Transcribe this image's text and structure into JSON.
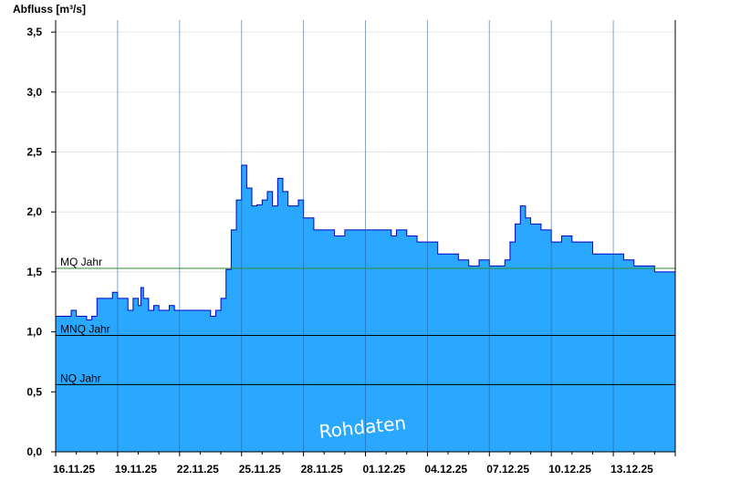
{
  "chart_data": {
    "type": "area",
    "title": "",
    "ylabel": "Abfluss [m³/s]",
    "xlabel": "",
    "ylim": [
      0,
      3.6
    ],
    "yticks": [
      0,
      0.5,
      1.0,
      1.5,
      2.0,
      2.5,
      3.0,
      3.5
    ],
    "ytick_labels": [
      "0,0",
      "0,5",
      "1,0",
      "1,5",
      "2,0",
      "2,5",
      "3,0",
      "3,5"
    ],
    "xlim": [
      "2025-11-16",
      "2025-12-16"
    ],
    "xtick_labels": [
      "16.11.25",
      "19.11.25",
      "22.11.25",
      "25.11.25",
      "28.11.25",
      "01.12.25",
      "04.12.25",
      "07.12.25",
      "10.12.25",
      "13.12.25"
    ],
    "grid": true,
    "fill_color": "#2aa8ff",
    "line_color": "#0000cc",
    "watermark": "Rohdaten",
    "reference_lines": [
      {
        "label": "MQ Jahr",
        "value": 1.53,
        "color": "#2e8b2e"
      },
      {
        "label": "MNQ Jahr",
        "value": 0.97,
        "color": "#000000"
      },
      {
        "label": "NQ Jahr",
        "value": 0.56,
        "color": "#000000"
      }
    ],
    "series": [
      {
        "x": [
          "2025-11-16",
          "2025-11-16T12:00",
          "2025-11-16T18:00",
          "2025-11-17T00:00",
          "2025-11-17T06:00",
          "2025-11-17T12:00",
          "2025-11-17T18:00",
          "2025-11-18T00:00",
          "2025-11-18T06:00",
          "2025-11-18T12:00",
          "2025-11-18T18:00",
          "2025-11-19T00:00",
          "2025-11-19T06:00",
          "2025-11-19T12:00",
          "2025-11-19T18:00",
          "2025-11-20T00:00",
          "2025-11-20T03:00",
          "2025-11-20T06:00",
          "2025-11-20T12:00",
          "2025-11-20T18:00",
          "2025-11-21T00:00",
          "2025-11-21T12:00",
          "2025-11-21T18:00",
          "2025-11-22T00:00",
          "2025-11-22T12:00",
          "2025-11-23T00:00",
          "2025-11-23T12:00",
          "2025-11-23T18:00",
          "2025-11-24T00:00",
          "2025-11-24T06:00",
          "2025-11-24T12:00",
          "2025-11-24T18:00",
          "2025-11-25T00:00",
          "2025-11-25T06:00",
          "2025-11-25T12:00",
          "2025-11-25T18:00",
          "2025-11-26T00:00",
          "2025-11-26T06:00",
          "2025-11-26T12:00",
          "2025-11-26T18:00",
          "2025-11-27T00:00",
          "2025-11-27T06:00",
          "2025-11-27T12:00",
          "2025-11-27T18:00",
          "2025-11-28T00:00",
          "2025-11-28T12:00",
          "2025-11-29T00:00",
          "2025-11-29T12:00",
          "2025-11-30T00:00",
          "2025-11-30T12:00",
          "2025-12-01T00:00",
          "2025-12-01T12:00",
          "2025-12-02T00:00",
          "2025-12-02T06:00",
          "2025-12-02T12:00",
          "2025-12-03T00:00",
          "2025-12-03T12:00",
          "2025-12-04T00:00",
          "2025-12-04T12:00",
          "2025-12-05T00:00",
          "2025-12-05T12:00",
          "2025-12-06T00:00",
          "2025-12-06T12:00",
          "2025-12-07T00:00",
          "2025-12-07T12:00",
          "2025-12-07T18:00",
          "2025-12-08T00:00",
          "2025-12-08T06:00",
          "2025-12-08T12:00",
          "2025-12-08T18:00",
          "2025-12-09T00:00",
          "2025-12-09T12:00",
          "2025-12-10T00:00",
          "2025-12-10T12:00",
          "2025-12-11T00:00",
          "2025-12-11T12:00",
          "2025-12-12T00:00",
          "2025-12-12T12:00",
          "2025-12-13T00:00",
          "2025-12-13T12:00",
          "2025-12-14T00:00",
          "2025-12-14T12:00",
          "2025-12-15T00:00",
          "2025-12-15T12:00",
          "2025-12-16T00:00"
        ],
        "y": [
          1.13,
          1.13,
          1.18,
          1.13,
          1.13,
          1.1,
          1.13,
          1.28,
          1.28,
          1.28,
          1.33,
          1.28,
          1.28,
          1.18,
          1.28,
          1.22,
          1.37,
          1.28,
          1.18,
          1.22,
          1.18,
          1.22,
          1.18,
          1.18,
          1.18,
          1.18,
          1.13,
          1.18,
          1.28,
          1.52,
          1.85,
          2.1,
          2.39,
          2.2,
          2.05,
          2.06,
          2.1,
          2.17,
          2.05,
          2.28,
          2.17,
          2.05,
          2.05,
          2.1,
          1.95,
          1.85,
          1.85,
          1.8,
          1.85,
          1.85,
          1.85,
          1.85,
          1.85,
          1.8,
          1.85,
          1.8,
          1.75,
          1.75,
          1.65,
          1.65,
          1.6,
          1.55,
          1.6,
          1.55,
          1.55,
          1.6,
          1.75,
          1.9,
          2.05,
          1.95,
          1.9,
          1.85,
          1.75,
          1.8,
          1.75,
          1.75,
          1.65,
          1.65,
          1.65,
          1.6,
          1.55,
          1.55,
          1.5,
          1.5,
          1.55
        ]
      }
    ]
  }
}
